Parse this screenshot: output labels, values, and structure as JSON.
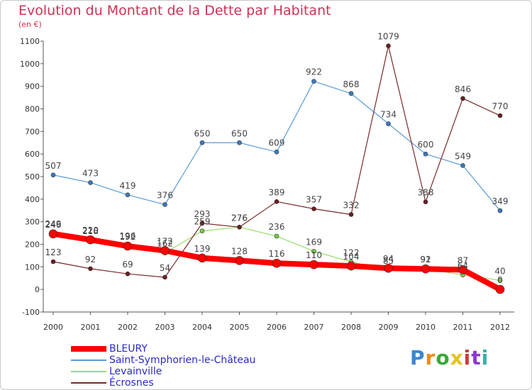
{
  "title": "Evolution du Montant de la Dette par Habitant",
  "unit": "(en €)",
  "logo": "Proxiti",
  "chart_data": {
    "type": "line",
    "categories": [
      "2000",
      "2001",
      "2002",
      "2003",
      "2004",
      "2005",
      "2006",
      "2007",
      "2008",
      "2009",
      "2010",
      "2011",
      "2012"
    ],
    "ylim": [
      -100,
      1100
    ],
    "yticks": [
      -100,
      0,
      100,
      200,
      300,
      400,
      500,
      600,
      700,
      800,
      900,
      1000,
      1100
    ],
    "grid": false,
    "legend_position": "bottom-left",
    "series": [
      {
        "name": "Saint-Symphorien-le-Château",
        "color": "#5b9bd5",
        "point_color": "#3a7ac0",
        "width": 1.2,
        "radius": 3,
        "values": [
          507,
          473,
          419,
          376,
          650,
          650,
          609,
          922,
          868,
          734,
          600,
          549,
          349
        ]
      },
      {
        "name": "Levainville",
        "color": "#99dd66",
        "point_color": "#77cc44",
        "width": 1.2,
        "radius": 3,
        "values": [
          249,
          218,
          196,
          162,
          259,
          276,
          236,
          169,
          122,
          85,
          92,
          64,
          40
        ]
      },
      {
        "name": "Écrosnes",
        "color": "#7a2a2a",
        "point_color": "#6b1f1f",
        "width": 1.2,
        "radius": 3,
        "values": [
          123,
          92,
          69,
          54,
          293,
          276,
          389,
          357,
          332,
          1079,
          388,
          846,
          770
        ]
      },
      {
        "name": "BLEURY",
        "color": "#ff0000",
        "point_color": "#ff0000",
        "width": 8,
        "radius": 6,
        "values": [
          246,
          220,
          192,
          172,
          139,
          128,
          116,
          110,
          104,
          94,
          91,
          87,
          0
        ]
      }
    ]
  }
}
